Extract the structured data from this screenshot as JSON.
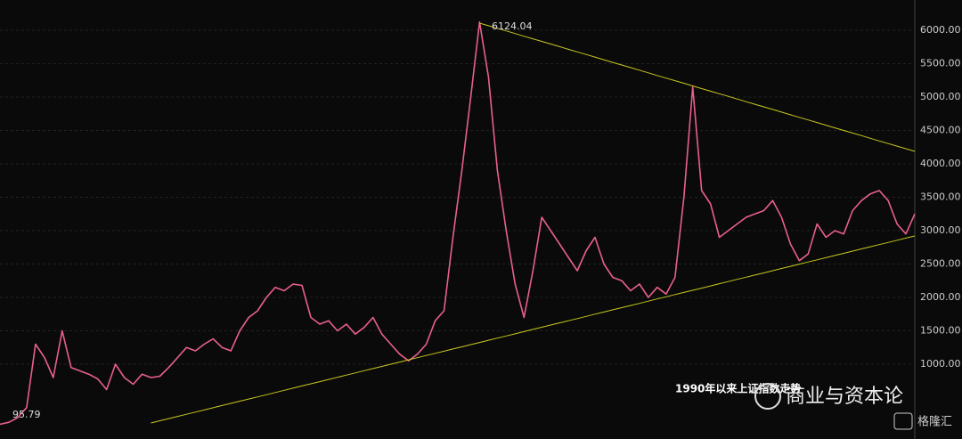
{
  "chart_data": {
    "type": "line",
    "ylim": [
      -120,
      6453
    ],
    "yticks": [
      {
        "value": 1000,
        "label": "1000.00"
      },
      {
        "value": 1500,
        "label": "1500.00"
      },
      {
        "value": 2000,
        "label": "2000.00"
      },
      {
        "value": 2500,
        "label": "2500.00"
      },
      {
        "value": 3000,
        "label": "3000.00"
      },
      {
        "value": 3500,
        "label": "3500.00"
      },
      {
        "value": 4000,
        "label": "4000.00"
      },
      {
        "value": 4500,
        "label": "4500.00"
      },
      {
        "value": 5000,
        "label": "5000.00"
      },
      {
        "value": 5500,
        "label": "5500.00"
      },
      {
        "value": 6000,
        "label": "6000.00"
      }
    ],
    "grid": true,
    "series": [
      {
        "color": "#e8608a",
        "values": [
          100,
          130,
          200,
          350,
          1300,
          1100,
          800,
          1500,
          950,
          900,
          850,
          780,
          620,
          1000,
          800,
          700,
          850,
          800,
          820,
          950,
          1100,
          1250,
          1200,
          1300,
          1380,
          1250,
          1200,
          1500,
          1700,
          1800,
          2000,
          2150,
          2100,
          2200,
          2180,
          1700,
          1600,
          1650,
          1500,
          1600,
          1450,
          1550,
          1700,
          1450,
          1300,
          1150,
          1050,
          1150,
          1300,
          1650,
          1800,
          2900,
          3900,
          5000,
          6124,
          5300,
          3900,
          3000,
          2200,
          1700,
          2400,
          3200,
          3000,
          2800,
          2600,
          2400,
          2700,
          2900,
          2500,
          2300,
          2250,
          2100,
          2200,
          2000,
          2150,
          2050,
          2300,
          3500,
          5150,
          3600,
          3400,
          2900,
          3000,
          3100,
          3200,
          3250,
          3300,
          3450,
          3200,
          2800,
          2550,
          2650,
          3100,
          2900,
          3000,
          2950,
          3300,
          3450,
          3550,
          3600,
          3450,
          3100,
          2950,
          3250
        ]
      },
      {
        "color": "#c8c820",
        "values": [
          null,
          null,
          null,
          null,
          null,
          null,
          null,
          null,
          null,
          null,
          null,
          null,
          null,
          null,
          null,
          null,
          null,
          null,
          null,
          null,
          null,
          null,
          null,
          null,
          null,
          null,
          null,
          null,
          null,
          null,
          null,
          null,
          null,
          null,
          null,
          null,
          null,
          null,
          null,
          null,
          null,
          null,
          null,
          null,
          null,
          null,
          null,
          null,
          null,
          null,
          null,
          null,
          null,
          null,
          6107,
          6068,
          6029,
          5990,
          5950,
          5911,
          5872,
          5833,
          5794,
          5754,
          5715,
          5676,
          5637,
          5598,
          5558,
          5519,
          5480,
          5441,
          5402,
          5362,
          5323,
          5284,
          5245,
          5206,
          5166,
          5127,
          5088,
          5049,
          5010,
          4970,
          4931,
          4892,
          4853,
          4814,
          4774,
          4735,
          4696,
          4657,
          4618,
          4578,
          4539,
          4500,
          4461,
          4422,
          4382,
          4343,
          4304,
          4265,
          4226,
          4187
        ]
      },
      {
        "color": "#c8c820",
        "values": [
          null,
          null,
          null,
          null,
          null,
          null,
          null,
          null,
          null,
          null,
          null,
          null,
          null,
          null,
          null,
          null,
          null,
          120,
          153,
          185,
          218,
          250,
          283,
          315,
          348,
          381,
          413,
          446,
          478,
          511,
          543,
          576,
          609,
          641,
          674,
          706,
          739,
          772,
          804,
          837,
          869,
          902,
          934,
          967,
          1000,
          1032,
          1065,
          1097,
          1130,
          1162,
          1195,
          1228,
          1260,
          1293,
          1325,
          1358,
          1390,
          1423,
          1455,
          1488,
          1521,
          1553,
          1586,
          1618,
          1651,
          1683,
          1716,
          1749,
          1781,
          1814,
          1846,
          1879,
          1911,
          1944,
          1977,
          2009,
          2042,
          2074,
          2107,
          2139,
          2172,
          2205,
          2237,
          2270,
          2302,
          2335,
          2367,
          2400,
          2433,
          2465,
          2498,
          2530,
          2563,
          2595,
          2628,
          2660,
          2693,
          2726,
          2758,
          2791,
          2823,
          2856,
          2888,
          2920
        ]
      }
    ],
    "annotations": [
      "6124.04",
      "95.79",
      "1990年以来上证指数走势",
      "商业与资本论",
      "格隆汇"
    ]
  }
}
